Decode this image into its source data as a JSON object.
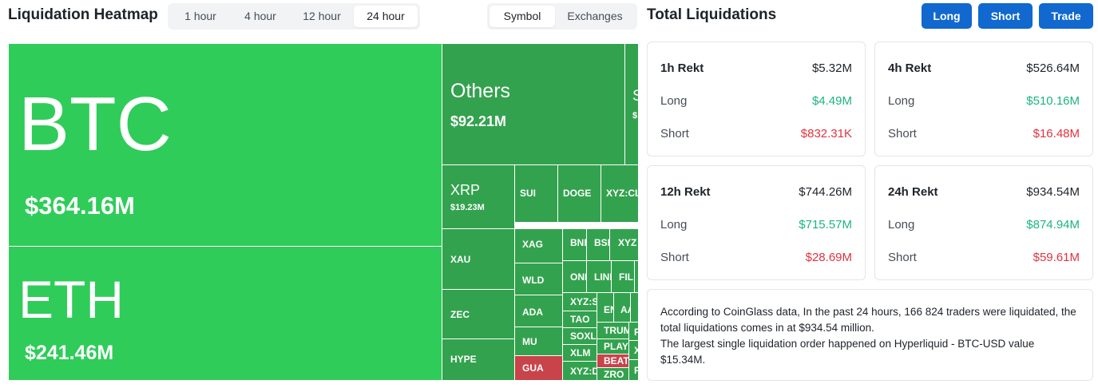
{
  "heatmap": {
    "title": "Liquidation Heatmap",
    "time_tabs": [
      "1 hour",
      "4 hour",
      "12 hour",
      "24 hour"
    ],
    "view_tabs": [
      "Symbol",
      "Exchanges"
    ],
    "tiles": {
      "btc": {
        "symbol": "BTC",
        "value": "$364.16M"
      },
      "eth": {
        "symbol": "ETH",
        "value": "$241.46M"
      },
      "others": {
        "symbol": "Others",
        "value": "$92.21M"
      },
      "sol_partial": {
        "symbol": "S",
        "value": "$"
      },
      "xrp": {
        "symbol": "XRP",
        "value": "$19.23M"
      },
      "sui": "SUI",
      "doge": "DOGE",
      "xyzcl": "XYZ:CL",
      "xau": "XAU",
      "xag": "XAG",
      "bnb": "BNB",
      "bsb": "BSB",
      "xyz2": "XYZ",
      "wld": "WLD",
      "ondo": "ONDO",
      "link": "LINK",
      "fil": "FIL",
      "zec": "ZEC",
      "ada": "ADA",
      "xyzs": "XYZ:S",
      "en": "EN",
      "aa": "AA",
      "tao": "TAO",
      "soxl": "SOXL",
      "trump": "TRUMP",
      "pp": "P",
      "mu": "MU",
      "xlm": "XLM",
      "play": "PLAY",
      "xx": "X",
      "hype": "HYPE",
      "gua": "GUA",
      "beat": "BEAT",
      "xyzd": "XYZ:D",
      "zro": "ZRO",
      "ff": "F"
    }
  },
  "total": {
    "title": "Total Liquidations",
    "buttons": {
      "long": "Long",
      "short": "Short",
      "trade": "Trade"
    },
    "cards": {
      "h1": {
        "title": "1h Rekt",
        "total": "$5.32M",
        "long_label": "Long",
        "long": "$4.49M",
        "short_label": "Short",
        "short": "$832.31K"
      },
      "h4": {
        "title": "4h Rekt",
        "total": "$526.64M",
        "long_label": "Long",
        "long": "$510.16M",
        "short_label": "Short",
        "short": "$16.48M"
      },
      "h12": {
        "title": "12h Rekt",
        "total": "$744.26M",
        "long_label": "Long",
        "long": "$715.57M",
        "short_label": "Short",
        "short": "$28.69M"
      },
      "h24": {
        "title": "24h Rekt",
        "total": "$934.54M",
        "long_label": "Long",
        "long": "$874.94M",
        "short_label": "Short",
        "short": "$59.61M"
      }
    },
    "summary": {
      "line1": "According to CoinGlass data, In the past 24 hours, 166 824 traders were liquidated, the total liquidations comes in at $934.54 million.",
      "line2": "The largest single liquidation order happened on Hyperliquid - BTC-USD value $15.34M."
    }
  },
  "colors": {
    "heat_green_large": "#2fcc5a",
    "heat_green_medium": "#33a24e",
    "heat_red": "#c8434a",
    "long_green": "#1cb384",
    "short_red": "#e0323f",
    "accent_blue": "#1168cf"
  }
}
